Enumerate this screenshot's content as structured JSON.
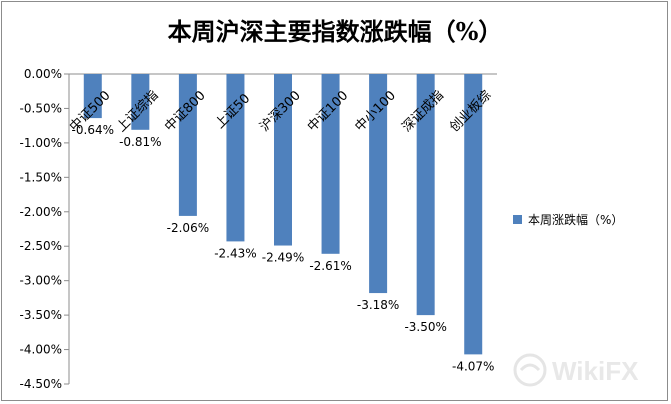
{
  "chart_data": {
    "type": "bar",
    "title": "本周沪深主要指数涨跌幅（%）",
    "categories": [
      "中证500",
      "上证综指",
      "中证800",
      "上证50",
      "沪深300",
      "中证100",
      "中小100",
      "深证成指",
      "创业板综"
    ],
    "series": [
      {
        "name": "本周涨跌幅（%）",
        "values": [
          -0.64,
          -0.81,
          -2.06,
          -2.43,
          -2.49,
          -2.61,
          -3.18,
          -3.5,
          -4.07
        ],
        "color": "#4f81bd"
      }
    ],
    "value_labels": [
      "-0.64%",
      "-0.81%",
      "-2.06%",
      "-2.43%",
      "-2.49%",
      "-2.61%",
      "-3.18%",
      "-3.50%",
      "-4.07%"
    ],
    "y_ticks": [
      "0.00%",
      "-0.50%",
      "-1.00%",
      "-1.50%",
      "-2.00%",
      "-2.50%",
      "-3.00%",
      "-3.50%",
      "-4.00%",
      "-4.50%"
    ],
    "ylim": [
      -4.5,
      0
    ],
    "xlabel": "",
    "ylabel": "",
    "grid": false,
    "legend": "right"
  },
  "watermark": {
    "text": "WikiFX"
  }
}
